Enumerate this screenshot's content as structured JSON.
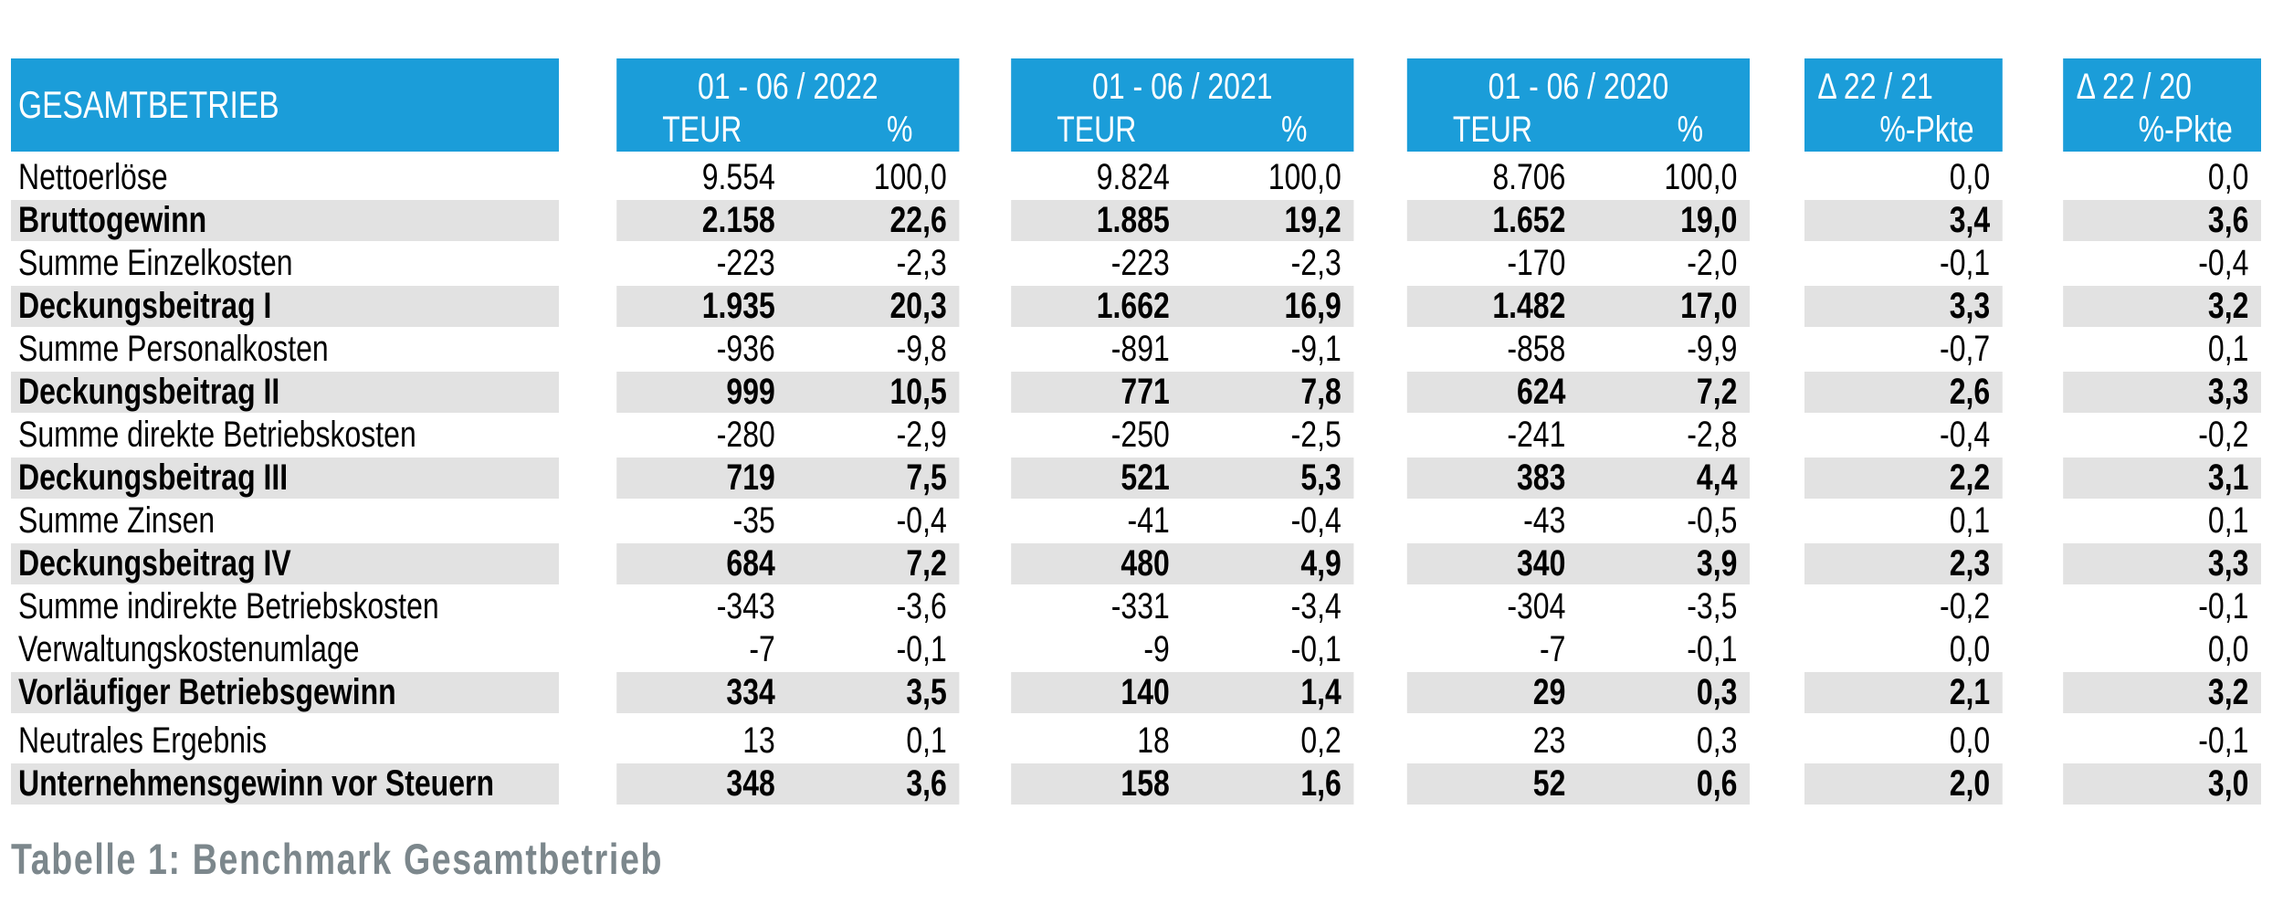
{
  "colors": {
    "header_blue": "#1B9DD9",
    "stripe_gray": "#E2E2E2",
    "caption_gray": "#7C878C"
  },
  "table": {
    "title": "GESAMTBETRIEB",
    "caption": "Tabelle 1: Benchmark Gesamtbetrieb",
    "year_columns": [
      {
        "period": "01 - 06 / 2022",
        "unit_teur": "TEUR",
        "unit_pct": "%"
      },
      {
        "period": "01 - 06 / 2021",
        "unit_teur": "TEUR",
        "unit_pct": "%"
      },
      {
        "period": "01 - 06 / 2020",
        "unit_teur": "TEUR",
        "unit_pct": "%"
      }
    ],
    "delta_columns": [
      {
        "label": "Δ 22 / 21",
        "unit": "%-Pkte"
      },
      {
        "label": "Δ 22 / 20",
        "unit": "%-Pkte"
      }
    ],
    "rows": [
      {
        "label": "Nettoerlöse",
        "bold": false,
        "values": [
          "9.554",
          "100,0",
          "9.824",
          "100,0",
          "8.706",
          "100,0",
          "0,0",
          "0,0"
        ]
      },
      {
        "label": "Bruttogewinn",
        "bold": true,
        "values": [
          "2.158",
          "22,6",
          "1.885",
          "19,2",
          "1.652",
          "19,0",
          "3,4",
          "3,6"
        ]
      },
      {
        "label": "Summe Einzelkosten",
        "bold": false,
        "values": [
          "-223",
          "-2,3",
          "-223",
          "-2,3",
          "-170",
          "-2,0",
          "-0,1",
          "-0,4"
        ]
      },
      {
        "label": "Deckungsbeitrag I",
        "bold": true,
        "values": [
          "1.935",
          "20,3",
          "1.662",
          "16,9",
          "1.482",
          "17,0",
          "3,3",
          "3,2"
        ]
      },
      {
        "label": "Summe Personalkosten",
        "bold": false,
        "values": [
          "-936",
          "-9,8",
          "-891",
          "-9,1",
          "-858",
          "-9,9",
          "-0,7",
          "0,1"
        ]
      },
      {
        "label": "Deckungsbeitrag II",
        "bold": true,
        "values": [
          "999",
          "10,5",
          "771",
          "7,8",
          "624",
          "7,2",
          "2,6",
          "3,3"
        ]
      },
      {
        "label": "Summe direkte Betriebskosten",
        "bold": false,
        "values": [
          "-280",
          "-2,9",
          "-250",
          "-2,5",
          "-241",
          "-2,8",
          "-0,4",
          "-0,2"
        ]
      },
      {
        "label": "Deckungsbeitrag III",
        "bold": true,
        "values": [
          "719",
          "7,5",
          "521",
          "5,3",
          "383",
          "4,4",
          "2,2",
          "3,1"
        ]
      },
      {
        "label": "Summe Zinsen",
        "bold": false,
        "values": [
          "-35",
          "-0,4",
          "-41",
          "-0,4",
          "-43",
          "-0,5",
          "0,1",
          "0,1"
        ]
      },
      {
        "label": "Deckungsbeitrag IV",
        "bold": true,
        "values": [
          "684",
          "7,2",
          "480",
          "4,9",
          "340",
          "3,9",
          "2,3",
          "3,3"
        ]
      },
      {
        "label": "Summe indirekte Betriebskosten",
        "bold": false,
        "values": [
          "-343",
          "-3,6",
          "-331",
          "-3,4",
          "-304",
          "-3,5",
          "-0,2",
          "-0,1"
        ]
      },
      {
        "label": "Verwaltungskostenumlage",
        "bold": false,
        "values": [
          "-7",
          "-0,1",
          "-9",
          "-0,1",
          "-7",
          "-0,1",
          "0,0",
          "0,0"
        ]
      },
      {
        "label": "Vorläufiger Betriebsgewinn",
        "bold": true,
        "values": [
          "334",
          "3,5",
          "140",
          "1,4",
          "29",
          "0,3",
          "2,1",
          "3,2"
        ]
      },
      {
        "label": "Neutrales Ergebnis",
        "bold": false,
        "gap_before": true,
        "values": [
          "13",
          "0,1",
          "18",
          "0,2",
          "23",
          "0,3",
          "0,0",
          "-0,1"
        ]
      },
      {
        "label": "Unternehmensgewinn vor Steuern",
        "bold": true,
        "values": [
          "348",
          "3,6",
          "158",
          "1,6",
          "52",
          "0,6",
          "2,0",
          "3,0"
        ]
      }
    ]
  }
}
